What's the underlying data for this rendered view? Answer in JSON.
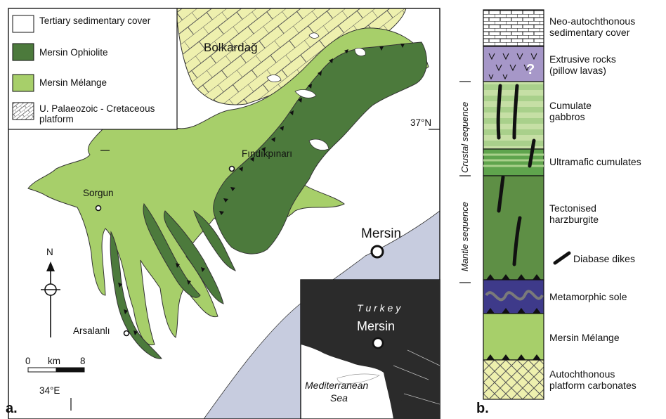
{
  "colors": {
    "tertiary_cover": "#ffffff",
    "ophiolite": "#4c7a3c",
    "melange": "#a7cf6a",
    "platform": "#eef0ae",
    "sea": "#c7ccdf",
    "extrusive": "#a697c8",
    "gabbro_stripe": "#a9d08b",
    "ultramafic": "#5fa44d",
    "harzburgite": "#5e8f45",
    "meta_sole": "#3e3a8a",
    "inset_land": "#2b2b2b"
  },
  "map": {
    "legend": [
      {
        "label": "Tertiary sedimentary cover",
        "swatch": "tertiary_cover"
      },
      {
        "label": "Mersin Ophiolite",
        "swatch": "ophiolite"
      },
      {
        "label": "Mersin Mélange",
        "swatch": "melange"
      },
      {
        "label": "U. Palaeozoic - Cretaceous platform",
        "swatch": "platform"
      }
    ],
    "places": {
      "bolkardag": "Bolkardağ",
      "findikpinari": "Fındıkpınarı",
      "sorgun": "Sorgun",
      "arsalanli": "Arsalanlı",
      "mersin": "Mersin"
    },
    "lat_label": "37°N",
    "lon_label": "34°E",
    "north": "N",
    "scale": {
      "start": "0",
      "unit": "km",
      "end": "8"
    },
    "inset": {
      "country": "T u r k e y",
      "city": "Mersin",
      "sea_line1": "Mediterranean",
      "sea_line2": "Sea"
    },
    "panel_letter": "a."
  },
  "column": {
    "units": [
      {
        "label_line1": "Neo-autochthonous",
        "label_line2": "sedimentary cover"
      },
      {
        "label_line1": "Extrusive rocks",
        "label_line2": "(pillow lavas)"
      },
      {
        "label_line1": "Cumulate",
        "label_line2": "gabbros"
      },
      {
        "label_line1": "Ultramafic cumulates",
        "label_line2": ""
      },
      {
        "label_line1": "Tectonised",
        "label_line2": "harzburgite"
      },
      {
        "label_line1": "Diabase dikes",
        "label_line2": ""
      },
      {
        "label_line1": "Metamorphic sole",
        "label_line2": ""
      },
      {
        "label_line1": "Mersin Mélange",
        "label_line2": ""
      },
      {
        "label_line1": "Autochthonous",
        "label_line2": "platform carbonates"
      }
    ],
    "question_mark": "?",
    "crustal_sequence": "Crustal sequence",
    "mantle_sequence": "Mantle sequence",
    "panel_letter": "b."
  }
}
